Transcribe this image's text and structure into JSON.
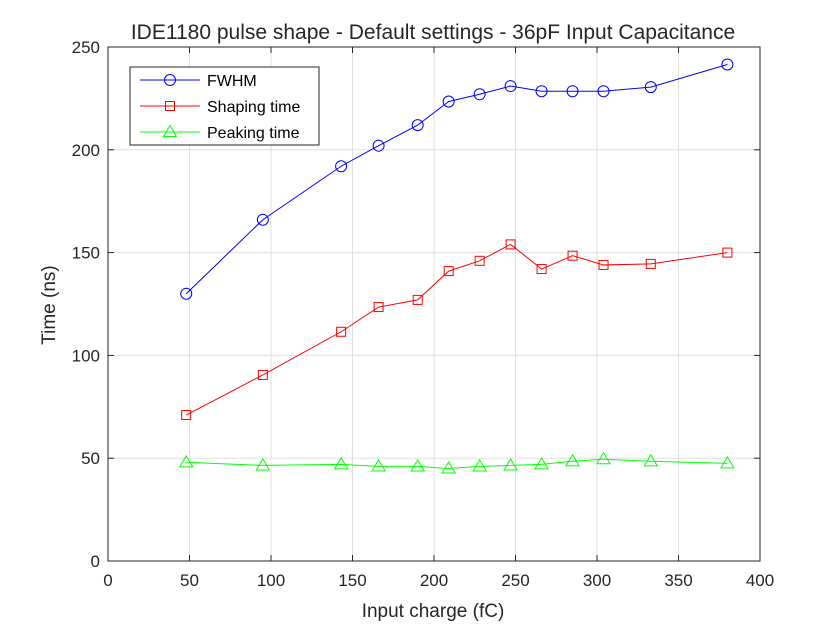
{
  "chart_data": {
    "type": "line",
    "title": "IDE1180 pulse shape - Default settings - 36pF Input Capacitance",
    "xlabel": "Input charge (fC)",
    "ylabel": "Time (ns)",
    "xlim": [
      0,
      400
    ],
    "ylim": [
      0,
      250
    ],
    "xticks": [
      0,
      50,
      100,
      150,
      200,
      250,
      300,
      350,
      400
    ],
    "yticks": [
      0,
      50,
      100,
      150,
      200,
      250
    ],
    "grid": true,
    "legend_position": "top-left",
    "x": [
      48,
      95,
      143,
      166,
      190,
      209,
      228,
      247,
      266,
      285,
      304,
      333,
      380
    ],
    "series": [
      {
        "name": "FWHM",
        "color": "#0000ff",
        "marker": "circle",
        "values": [
          130,
          166,
          192,
          202,
          212,
          223.5,
          227,
          231,
          228.5,
          228.5,
          228.5,
          230.5,
          241.5
        ]
      },
      {
        "name": "Shaping time",
        "color": "#ff0000",
        "marker": "square",
        "values": [
          71,
          90.5,
          111.5,
          123.5,
          127,
          141,
          146,
          154,
          142,
          148.5,
          144,
          144.5,
          150
        ]
      },
      {
        "name": "Peaking time",
        "color": "#00ff00",
        "marker": "triangle",
        "values": [
          48,
          46.5,
          47,
          46,
          46,
          45,
          46,
          46.5,
          47,
          48.5,
          49.5,
          48.5,
          47.5
        ]
      }
    ]
  }
}
